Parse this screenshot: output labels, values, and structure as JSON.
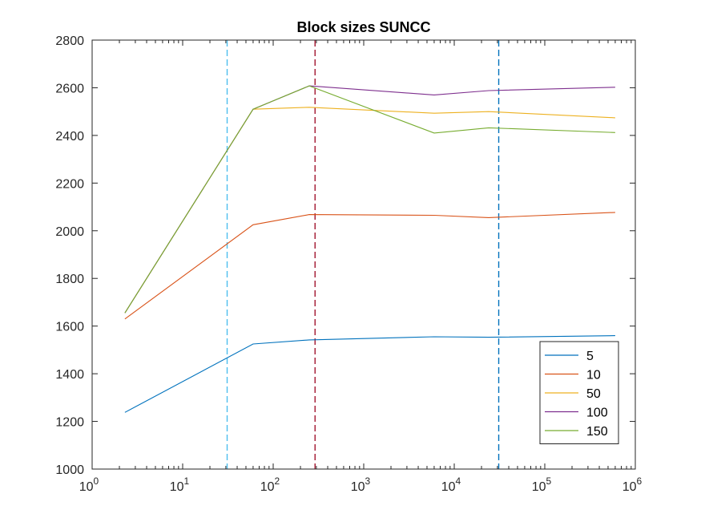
{
  "chart_data": {
    "type": "line",
    "title": "Block sizes SUNCC",
    "xlabel": "",
    "ylabel": "",
    "x_scale": "log",
    "xlim": [
      1,
      1000000
    ],
    "ylim": [
      1000,
      2800
    ],
    "x_ticks": [
      {
        "value": 1,
        "base": "10",
        "exp": "0"
      },
      {
        "value": 10,
        "base": "10",
        "exp": "1"
      },
      {
        "value": 100,
        "base": "10",
        "exp": "2"
      },
      {
        "value": 1000,
        "base": "10",
        "exp": "3"
      },
      {
        "value": 10000,
        "base": "10",
        "exp": "4"
      },
      {
        "value": 100000,
        "base": "10",
        "exp": "5"
      },
      {
        "value": 1000000,
        "base": "10",
        "exp": "6"
      }
    ],
    "y_ticks": [
      "1000",
      "1200",
      "1400",
      "1600",
      "1800",
      "2000",
      "2200",
      "2400",
      "2600",
      "2800"
    ],
    "grid": false,
    "legend_position": "bottom-right",
    "x": [
      2.3,
      60,
      250,
      6000,
      24000,
      600000
    ],
    "series": [
      {
        "name": "5",
        "color": "#0072BD",
        "values": [
          1238,
          1525,
          1542,
          1555,
          1553,
          1560
        ]
      },
      {
        "name": "10",
        "color": "#D95319",
        "values": [
          1630,
          2025,
          2068,
          2065,
          2055,
          2077
        ]
      },
      {
        "name": "50",
        "color": "#EDB120",
        "values": [
          1655,
          2510,
          2518,
          2493,
          2500,
          2474
        ]
      },
      {
        "name": "100",
        "color": "#7E2F8E",
        "values": [
          1655,
          2510,
          2608,
          2570,
          2588,
          2602
        ]
      },
      {
        "name": "150",
        "color": "#77AC30",
        "values": [
          1655,
          2510,
          2608,
          2410,
          2432,
          2412
        ]
      }
    ],
    "reference_lines": [
      {
        "x": 31,
        "color": "#4DBEEE"
      },
      {
        "x": 290,
        "color": "#A2142F"
      },
      {
        "x": 31000,
        "color": "#0072BD"
      }
    ]
  }
}
